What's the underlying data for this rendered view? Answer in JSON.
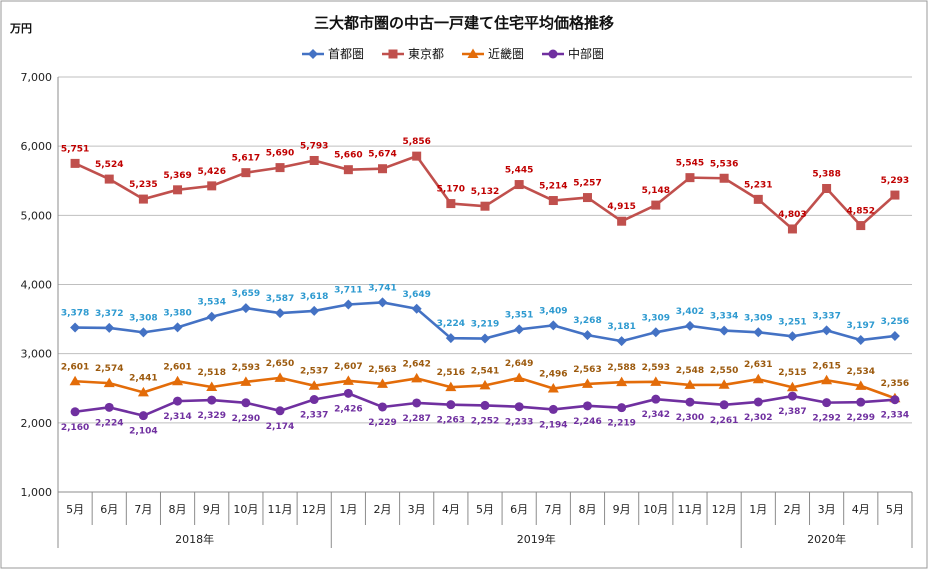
{
  "chart_data": {
    "type": "line",
    "title": "三大都市圏の中古一戸建て住宅平均価格推移",
    "ylabel": "万円",
    "ylim": [
      1000,
      7000
    ],
    "yticks": [
      1000,
      2000,
      3000,
      4000,
      5000,
      6000,
      7000
    ],
    "ytick_labels": [
      "1,000",
      "2,000",
      "3,000",
      "4,000",
      "5,000",
      "6,000",
      "7,000"
    ],
    "grid": true,
    "legend_position": "top-center",
    "categories": [
      "5月",
      "6月",
      "7月",
      "8月",
      "9月",
      "10月",
      "11月",
      "12月",
      "1月",
      "2月",
      "3月",
      "4月",
      "5月",
      "6月",
      "7月",
      "8月",
      "9月",
      "10月",
      "11月",
      "12月",
      "1月",
      "2月",
      "3月",
      "4月",
      "5月"
    ],
    "year_groups": [
      {
        "label": "2018年",
        "start": 0,
        "end": 7
      },
      {
        "label": "2019年",
        "start": 8,
        "end": 19
      },
      {
        "label": "2020年",
        "start": 20,
        "end": 24
      }
    ],
    "series": [
      {
        "name": "首都圏",
        "color": "#4472C4",
        "label_color": "#2E9AD0",
        "marker": "diamond",
        "values": [
          3378,
          3372,
          3308,
          3380,
          3534,
          3659,
          3587,
          3618,
          3711,
          3741,
          3649,
          3224,
          3219,
          3351,
          3409,
          3268,
          3181,
          3309,
          3402,
          3334,
          3309,
          3251,
          3337,
          3197,
          3256
        ],
        "labels": [
          "3,378",
          "3,372",
          "3,308",
          "3,380",
          "3,534",
          "3,659",
          "3,587",
          "3,618",
          "3,711",
          "3,741",
          "3,649",
          "3,224",
          "3,219",
          "3,351",
          "3,409",
          "3,268",
          "3,181",
          "3,309",
          "3,402",
          "3,334",
          "3,309",
          "3,251",
          "3,337",
          "3,197",
          "3,256"
        ]
      },
      {
        "name": "東京都",
        "color": "#C0504D",
        "label_color": "#C00000",
        "marker": "square",
        "values": [
          5751,
          5524,
          5235,
          5369,
          5426,
          5617,
          5690,
          5793,
          5660,
          5674,
          5856,
          5170,
          5132,
          5445,
          5214,
          5257,
          4915,
          5148,
          5545,
          5536,
          5231,
          4803,
          5388,
          4852,
          5293
        ],
        "labels": [
          "5,751",
          "5,524",
          "5,235",
          "5,369",
          "5,426",
          "5,617",
          "5,690",
          "5,793",
          "5,660",
          "5,674",
          "5,856",
          "5,170",
          "5,132",
          "5,445",
          "5,214",
          "5,257",
          "4,915",
          "5,148",
          "5,545",
          "5,536",
          "5,231",
          "4,803",
          "5,388",
          "4,852",
          "5,293"
        ]
      },
      {
        "name": "近畿圏",
        "color": "#E36C09",
        "label_color": "#9C5A0E",
        "marker": "triangle",
        "values": [
          2601,
          2574,
          2441,
          2601,
          2518,
          2593,
          2650,
          2537,
          2607,
          2563,
          2642,
          2516,
          2541,
          2649,
          2496,
          2563,
          2588,
          2593,
          2548,
          2550,
          2631,
          2515,
          2615,
          2534,
          2356
        ],
        "labels": [
          "2,601",
          "2,574",
          "2,441",
          "2,601",
          "2,518",
          "2,593",
          "2,650",
          "2,537",
          "2,607",
          "2,563",
          "2,642",
          "2,516",
          "2,541",
          "2,649",
          "2,496",
          "2,563",
          "2,588",
          "2,593",
          "2,548",
          "2,550",
          "2,631",
          "2,515",
          "2,615",
          "2,534",
          "2,356"
        ]
      },
      {
        "name": "中部圏",
        "color": "#7030A0",
        "label_color": "#7030A0",
        "marker": "circle",
        "values": [
          2160,
          2224,
          2104,
          2314,
          2329,
          2290,
          2174,
          2337,
          2426,
          2229,
          2287,
          2263,
          2252,
          2233,
          2194,
          2246,
          2219,
          2342,
          2300,
          2261,
          2302,
          2387,
          2292,
          2299,
          2334
        ],
        "labels": [
          "2,160",
          "2,224",
          "2,104",
          "2,314",
          "2,329",
          "2,290",
          "2,174",
          "2,337",
          "2,426",
          "2,229",
          "2,287",
          "2,263",
          "2,252",
          "2,233",
          "2,194",
          "2,246",
          "2,219",
          "2,342",
          "2,300",
          "2,261",
          "2,302",
          "2,387",
          "2,292",
          "2,299",
          "2,334"
        ]
      }
    ]
  }
}
